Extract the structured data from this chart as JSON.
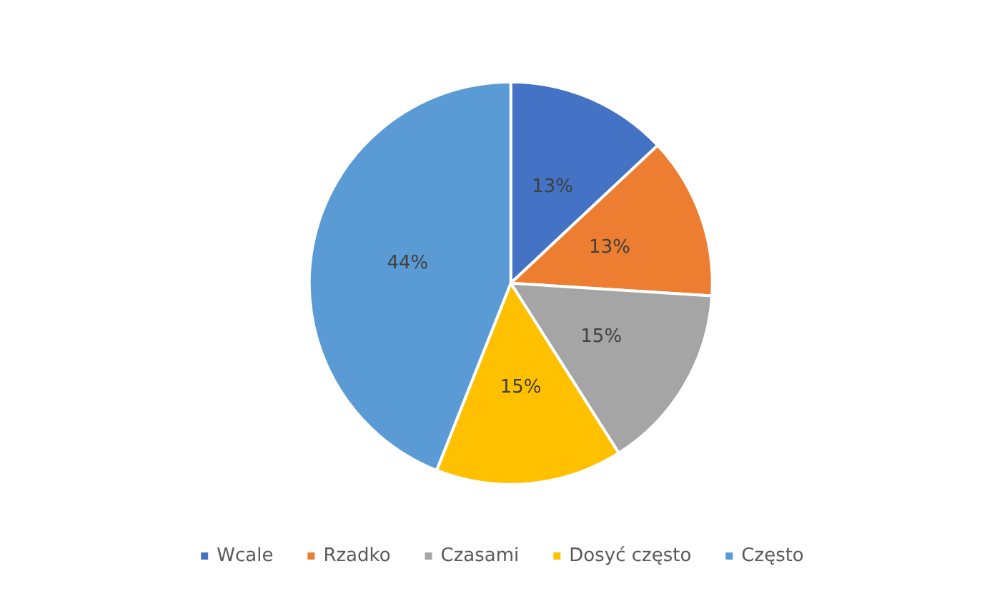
{
  "chart_data": {
    "type": "pie",
    "categories": [
      "Wcale",
      "Rzadko",
      "Czasami",
      "Dosyć często",
      "Często"
    ],
    "values": [
      13,
      13,
      15,
      15,
      44
    ],
    "colors": [
      "#4472c4",
      "#ed7d31",
      "#a5a5a5",
      "#ffc000",
      "#5b9bd5"
    ],
    "value_labels": [
      "13%",
      "13%",
      "15%",
      "15%",
      "44%"
    ],
    "legend": "bottom"
  }
}
